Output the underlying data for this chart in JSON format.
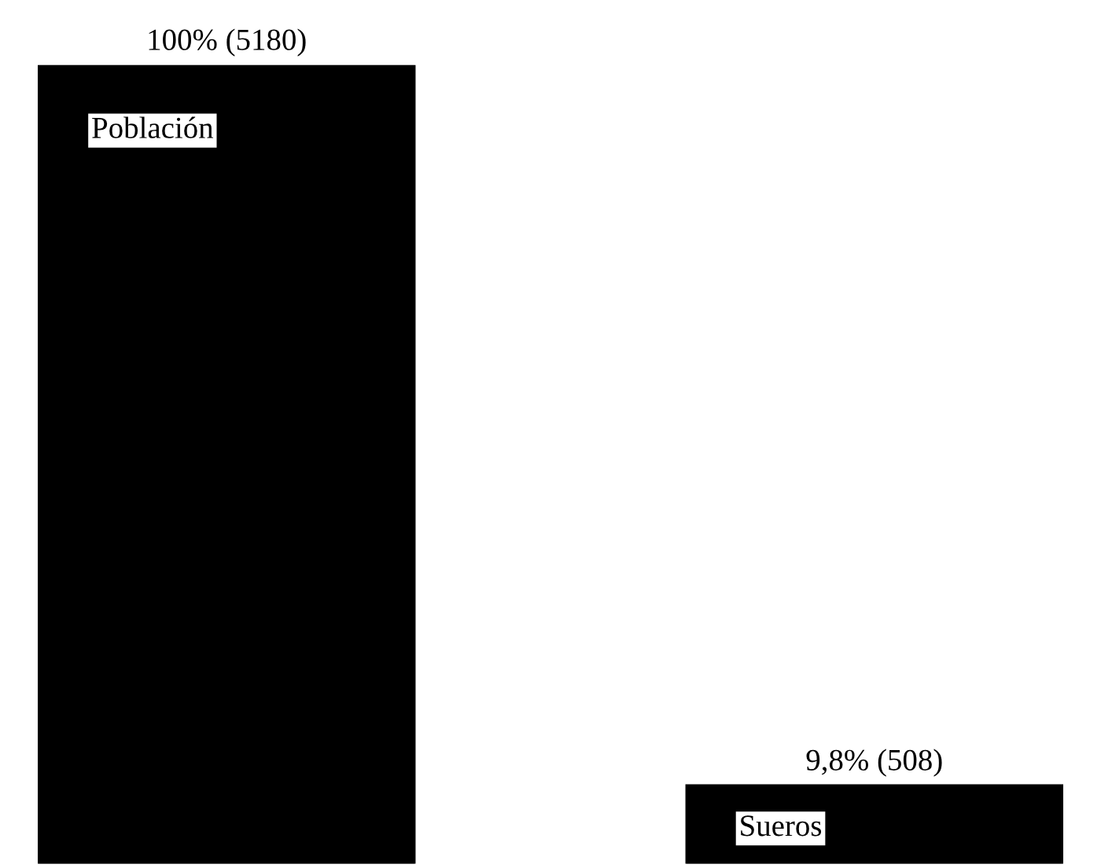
{
  "chart_data": {
    "type": "bar",
    "categories": [
      "Población",
      "Sueros"
    ],
    "values": [
      100,
      9.8
    ],
    "value_labels": [
      "100% (5180)",
      "9,8% (508)"
    ],
    "color": "#000000",
    "tick_labels": false,
    "grid": false,
    "legend": false
  }
}
